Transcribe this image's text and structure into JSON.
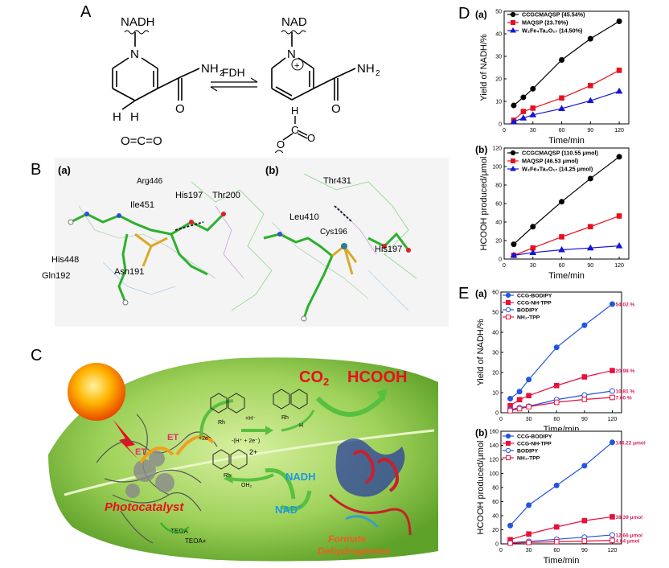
{
  "panels": {
    "A": "A",
    "B": "B",
    "C": "C",
    "D": "D",
    "E": "E"
  },
  "panelA": {
    "left_top": "NADH",
    "right_top": "NAD",
    "enzyme": "FDH",
    "nh2_left": "NH",
    "nh2_right": "NH",
    "sub2": "2",
    "h_label": "H",
    "co2": "O=C=O",
    "plus": "+",
    "minus": "−",
    "formate_h": "H",
    "formate_c": "C",
    "o": "O",
    "n": "N"
  },
  "panelB": {
    "sub_a": "(a)",
    "sub_b": "(b)",
    "residues_a": [
      "Arg446",
      "Ile451",
      "His197",
      "Thr200",
      "His448",
      "Asn191",
      "Gln192"
    ],
    "residues_b": [
      "Thr431",
      "Leu410",
      "Cys196",
      "His197"
    ]
  },
  "panelC": {
    "co2": "CO",
    "co2_sub": "2",
    "hcooh": "HCOOH",
    "et1": "ET",
    "et2": "ET",
    "photocatalyst": "Photocatalyst",
    "nadh": "NADH",
    "nadp": "NAD",
    "nadp_sup": "+",
    "fdh1": "Formate",
    "fdh2": "Dehydrogenase",
    "teoa": "TEOA",
    "teoap": "TEOA+",
    "plus_h": "+H⁻",
    "plus_2e": "+2e⁻",
    "minus_h2e": "-(H⁺ + 2e⁻)",
    "rh": "Rh",
    "two_plus": "2+",
    "oh2": "OH₂",
    "h": "H"
  },
  "chart_data": [
    {
      "id": "Da",
      "type": "line",
      "sublabel": "(a)",
      "xlabel": "Time/min",
      "ylabel": "Yield of NADH/%",
      "xlim": [
        0,
        130
      ],
      "ylim": [
        0,
        50
      ],
      "xticks": [
        0,
        30,
        60,
        90,
        120
      ],
      "yticks": [
        0,
        10,
        20,
        30,
        40,
        50
      ],
      "legend_position": "top-left",
      "series": [
        {
          "name": "CCGCMAQSP (45.54%)",
          "color": "#000000",
          "marker": "circle",
          "fill": true,
          "x": [
            10,
            20,
            30,
            60,
            90,
            120
          ],
          "y": [
            8.2,
            11.8,
            15.6,
            28.4,
            37.8,
            45.54
          ]
        },
        {
          "name": "MAQSP (23.79%)",
          "color": "#e8101e",
          "marker": "square",
          "fill": true,
          "x": [
            10,
            20,
            30,
            60,
            90,
            120
          ],
          "y": [
            1.6,
            5.5,
            7.0,
            11.5,
            17.0,
            23.79
          ]
        },
        {
          "name": "W₂Fe₄Ta₂O₁₇ (14.50%)",
          "color": "#1414d6",
          "marker": "triangle",
          "fill": true,
          "x": [
            10,
            20,
            30,
            60,
            90,
            120
          ],
          "y": [
            1.0,
            2.6,
            4.0,
            6.8,
            10.3,
            14.5
          ]
        }
      ]
    },
    {
      "id": "Db",
      "type": "line",
      "sublabel": "(b)",
      "xlabel": "Time/min",
      "ylabel": "HCOOH produced/μmol",
      "xlim": [
        0,
        130
      ],
      "ylim": [
        0,
        120
      ],
      "xticks": [
        0,
        30,
        60,
        90,
        120
      ],
      "yticks": [
        0,
        20,
        40,
        60,
        80,
        100,
        120
      ],
      "legend_position": "top-left",
      "series": [
        {
          "name": "CCGCMAQSP (110.55 μmol)",
          "color": "#000000",
          "marker": "circle",
          "fill": true,
          "x": [
            10,
            30,
            60,
            90,
            120
          ],
          "y": [
            16,
            35,
            62,
            87,
            110.55
          ]
        },
        {
          "name": "MAQSP (46.53 μmol)",
          "color": "#e8101e",
          "marker": "square",
          "fill": true,
          "x": [
            10,
            30,
            60,
            90,
            120
          ],
          "y": [
            4,
            12,
            24,
            35,
            46.53
          ]
        },
        {
          "name": "W₂Fe₄Ta₂O₁₇ (14.25 μmol)",
          "color": "#1414d6",
          "marker": "triangle",
          "fill": true,
          "x": [
            10,
            30,
            60,
            90,
            120
          ],
          "y": [
            4,
            7,
            10,
            12,
            14.25
          ]
        }
      ]
    },
    {
      "id": "Ea",
      "type": "line",
      "sublabel": "(a)",
      "xlabel": "Time/min",
      "ylabel": "Yield of NADH/%",
      "xlim": [
        0,
        130
      ],
      "ylim": [
        0,
        60
      ],
      "xticks": [
        0,
        30,
        60,
        90,
        120
      ],
      "yticks": [
        0,
        10,
        20,
        30,
        40,
        50,
        60
      ],
      "legend_position": "top-left",
      "series": [
        {
          "name": "CCG-BODIPY",
          "color": "#2255e0",
          "marker": "circle",
          "fill": true,
          "end_label": "54.02 %",
          "x": [
            10,
            20,
            30,
            60,
            90,
            120
          ],
          "y": [
            7,
            10.5,
            16.5,
            32.5,
            43.5,
            54.02
          ]
        },
        {
          "name": "CCG-NH-TPP",
          "color": "#e8103c",
          "marker": "square",
          "fill": true,
          "end_label": "20.98 %",
          "x": [
            10,
            20,
            30,
            60,
            90,
            120
          ],
          "y": [
            3.5,
            6.5,
            8.5,
            13.5,
            17.8,
            20.98
          ]
        },
        {
          "name": "BODIPY",
          "color": "#2255e0",
          "marker": "circle",
          "fill": false,
          "end_label": "10.81 %",
          "x": [
            10,
            20,
            30,
            60,
            90,
            120
          ],
          "y": [
            1.5,
            2.5,
            3.2,
            6.5,
            8.8,
            10.81
          ]
        },
        {
          "name": "NH₂-TPP",
          "color": "#e8103c",
          "marker": "square",
          "fill": false,
          "end_label": "7.60 %",
          "x": [
            10,
            20,
            30,
            60,
            90,
            120
          ],
          "y": [
            1.0,
            2.0,
            3.0,
            5.2,
            6.6,
            7.6
          ]
        }
      ]
    },
    {
      "id": "Eb",
      "type": "line",
      "sublabel": "(b)",
      "xlabel": "Time/min",
      "ylabel": "HCOOH produced/μmol",
      "xlim": [
        0,
        130
      ],
      "ylim": [
        0,
        160
      ],
      "xticks": [
        0,
        30,
        60,
        90,
        120
      ],
      "yticks": [
        0,
        20,
        40,
        60,
        80,
        100,
        120,
        140,
        160
      ],
      "legend_position": "top-left",
      "series": [
        {
          "name": "CCG-BODIPY",
          "color": "#2255e0",
          "marker": "circle",
          "fill": true,
          "end_label": "144.22 μmol",
          "x": [
            10,
            30,
            60,
            90,
            120
          ],
          "y": [
            26,
            55,
            83,
            111,
            144.22
          ]
        },
        {
          "name": "CCG-NH-TPP",
          "color": "#e8103c",
          "marker": "square",
          "fill": true,
          "end_label": "38.39 μmol",
          "x": [
            10,
            30,
            60,
            90,
            120
          ],
          "y": [
            6,
            14,
            24,
            33,
            38.39
          ]
        },
        {
          "name": "BODIPY",
          "color": "#2255e0",
          "marker": "circle",
          "fill": false,
          "end_label": "12.66 μmol",
          "x": [
            10,
            30,
            60,
            90,
            120
          ],
          "y": [
            1.5,
            3.5,
            6.5,
            9.5,
            12.66
          ]
        },
        {
          "name": "NH₂-TPP",
          "color": "#e8103c",
          "marker": "square",
          "fill": false,
          "end_label": "4.84 μmol",
          "x": [
            10,
            30,
            60,
            90,
            120
          ],
          "y": [
            1,
            2,
            3,
            4,
            4.84
          ]
        }
      ]
    }
  ]
}
